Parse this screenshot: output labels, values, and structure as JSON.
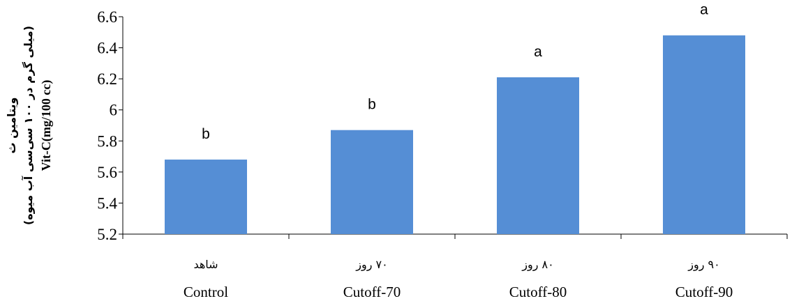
{
  "chart_data": {
    "type": "bar",
    "categories": [
      "Control",
      "Cutoff-70",
      "Cutoff-80",
      "Cutoff-90"
    ],
    "categories_fa": [
      "شاهد",
      "۷۰ روز",
      "۸۰ روز",
      "۹۰ روز"
    ],
    "values": [
      5.68,
      5.87,
      6.21,
      6.48
    ],
    "significance_labels": [
      "b",
      "b",
      "a",
      "a"
    ],
    "ylabel_lines": [
      "ویتامین ث",
      "(میلی گرم در ۱۰۰ سی‌سی آب میوه)",
      "Vit-C(mg/100 cc)"
    ],
    "ylim": [
      5.2,
      6.6
    ],
    "yticks": [
      {
        "value": 5.2,
        "label": "5.2"
      },
      {
        "value": 5.4,
        "label": "5.4"
      },
      {
        "value": 5.6,
        "label": "5.6"
      },
      {
        "value": 5.8,
        "label": "5.8"
      },
      {
        "value": 6.0,
        "label": "6"
      },
      {
        "value": 6.2,
        "label": "6.2"
      },
      {
        "value": 6.4,
        "label": "6.4"
      },
      {
        "value": 6.6,
        "label": "6.6"
      }
    ],
    "grid": false,
    "legend": "none",
    "bar_color": "#558ed5"
  }
}
